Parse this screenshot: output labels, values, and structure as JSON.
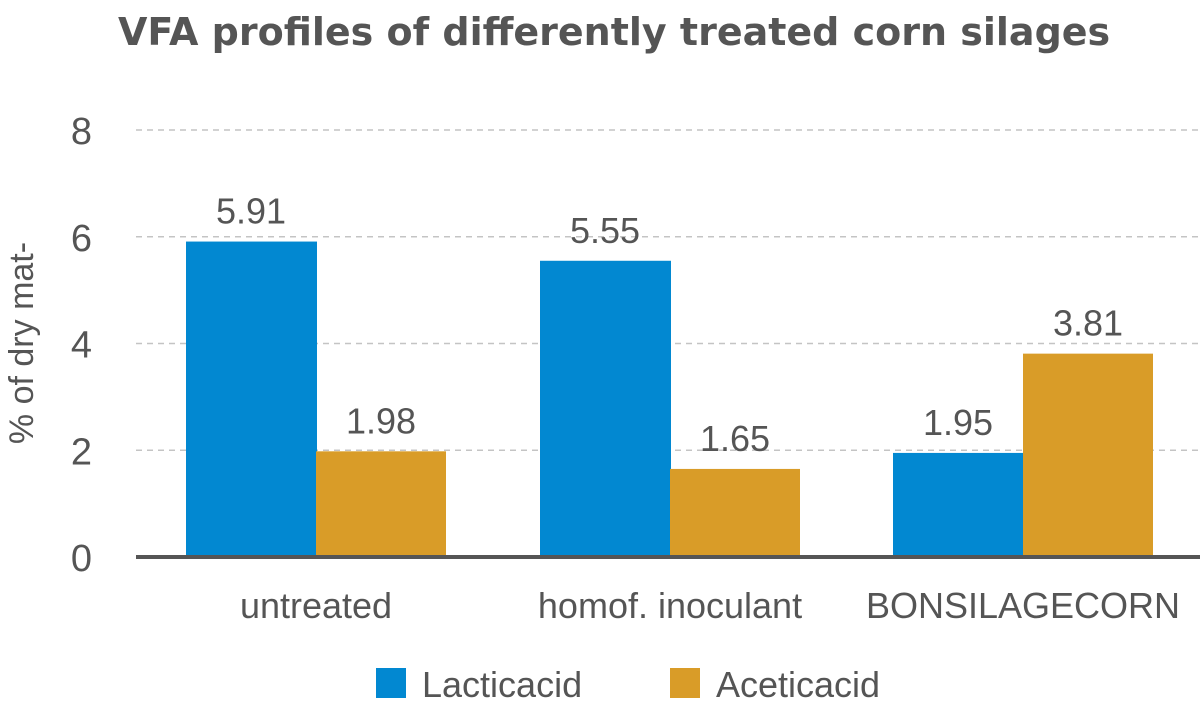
{
  "chart_data": {
    "type": "bar",
    "title": "VFA profiles of differently treated corn silages",
    "ylabel": "% of dry mat-",
    "xlabel": "",
    "categories": [
      "untreated",
      "homof. inoculant",
      "BONSILAGECORN"
    ],
    "series": [
      {
        "name": "Lacticacid",
        "values": [
          5.91,
          5.55,
          1.95
        ],
        "labels": [
          "5.91",
          "5.55",
          "1.95"
        ],
        "color": "#0288D1"
      },
      {
        "name": "Aceticacid",
        "values": [
          1.98,
          1.65,
          3.81
        ],
        "labels": [
          "1.98",
          "1.65",
          "3.81"
        ],
        "color": "#D99C28"
      }
    ],
    "ylim": [
      0,
      8
    ],
    "yticks": [
      0,
      2,
      4,
      6,
      8
    ],
    "ytick_labels": [
      "0",
      "2",
      "4",
      "6",
      "8"
    ],
    "grid": true,
    "legend_position": "bottom"
  }
}
